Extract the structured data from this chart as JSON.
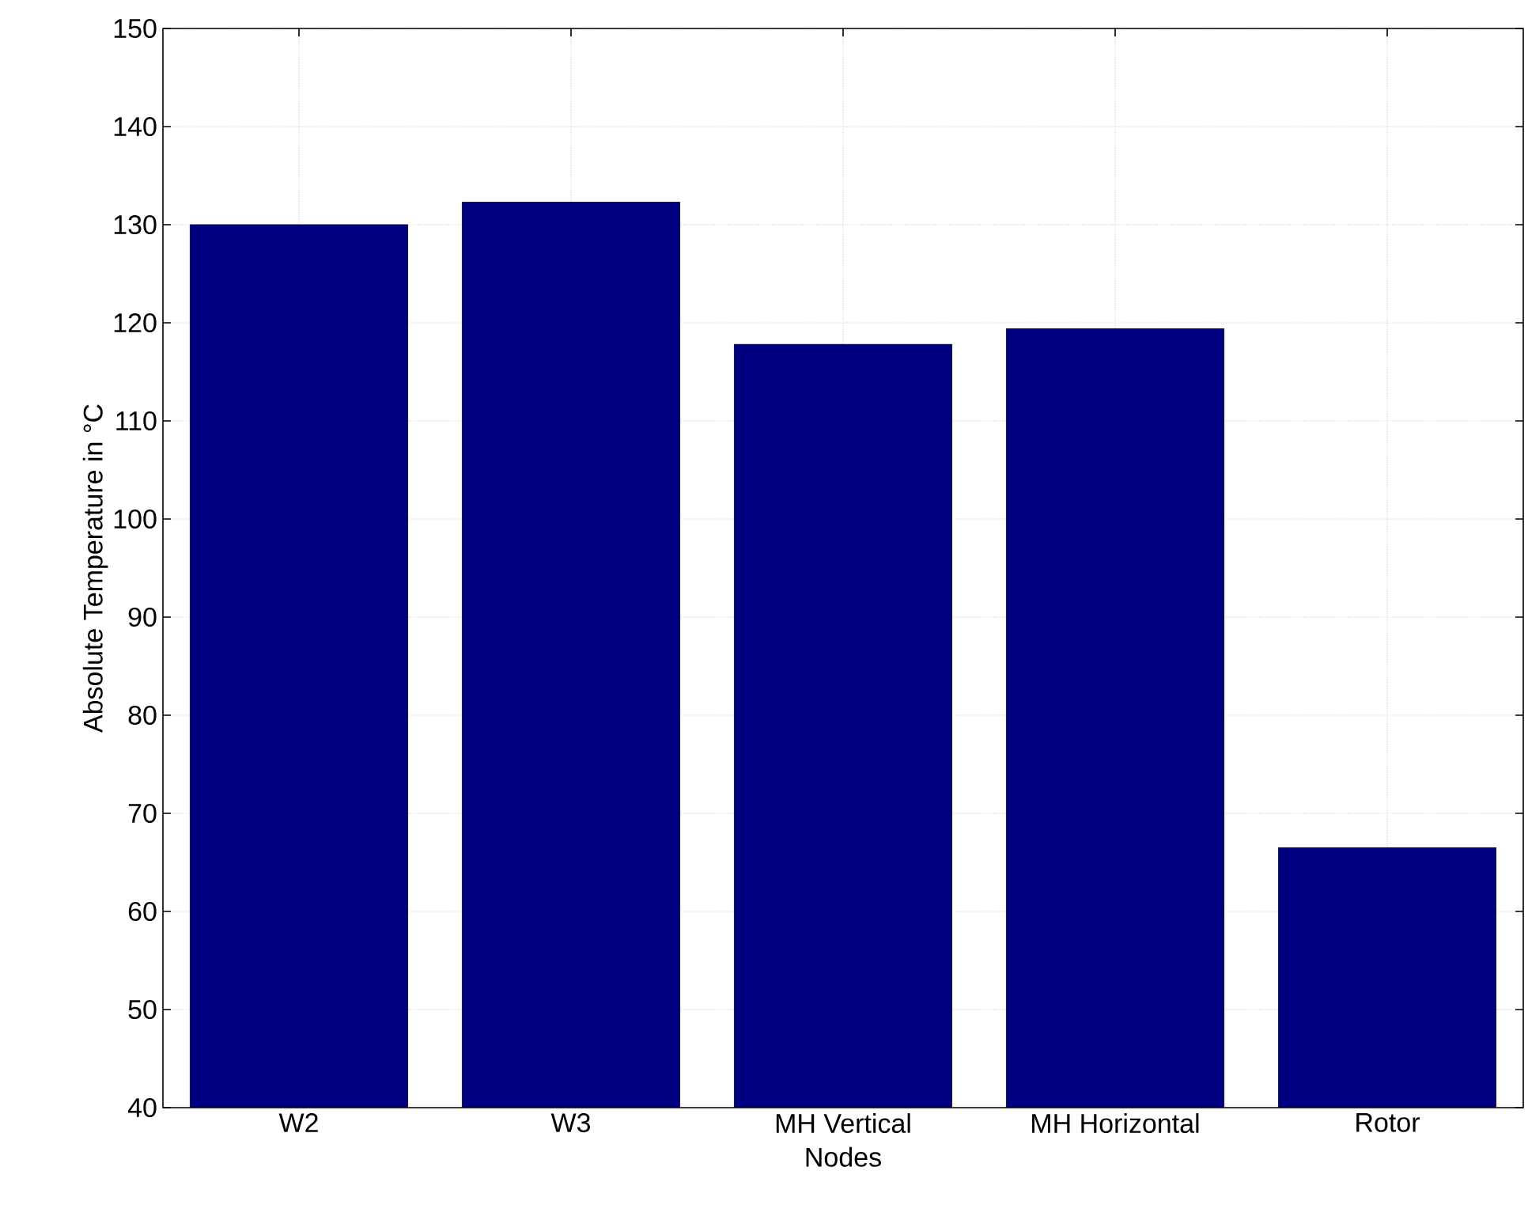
{
  "chart_data": {
    "type": "bar",
    "xlabel": "Nodes",
    "ylabel": "Absolute Temperature in °C",
    "categories": [
      "W2",
      "W3",
      "MH Vertical",
      "MH Horizontal",
      "Rotor"
    ],
    "values": [
      130.0,
      132.3,
      117.8,
      119.4,
      66.5
    ],
    "color": "#000080",
    "ylim": [
      40,
      150
    ],
    "yticks": [
      40,
      50,
      60,
      70,
      80,
      90,
      100,
      110,
      120,
      130,
      140,
      150
    ],
    "grid": true
  }
}
